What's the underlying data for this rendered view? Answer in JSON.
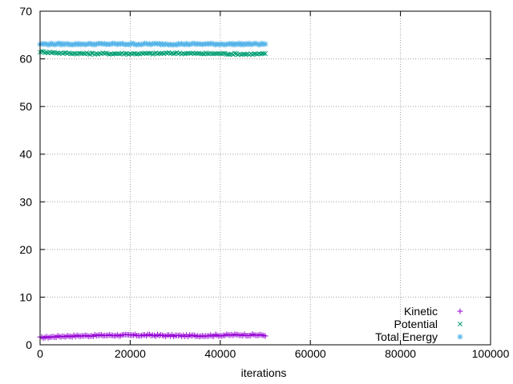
{
  "chart_data": {
    "type": "scatter",
    "title": "",
    "xlabel": "iterations",
    "ylabel": "",
    "xlim": [
      0,
      100000
    ],
    "ylim": [
      0,
      70
    ],
    "x_ticks": [
      0,
      20000,
      40000,
      60000,
      80000,
      100000
    ],
    "y_ticks": [
      0,
      10,
      20,
      30,
      40,
      50,
      60,
      70
    ],
    "grid": true,
    "legend_placement": "bottom-right",
    "series": [
      {
        "name": "Kinetic",
        "marker": "plus",
        "color": "#9400d3",
        "x_range": [
          0,
          50000
        ],
        "points": [
          [
            0,
            1.5
          ],
          [
            5000,
            1.8
          ],
          [
            10000,
            1.9
          ],
          [
            15000,
            2.0
          ],
          [
            20000,
            2.0
          ],
          [
            25000,
            2.0
          ],
          [
            30000,
            1.9
          ],
          [
            35000,
            1.9
          ],
          [
            40000,
            2.0
          ],
          [
            45000,
            2.1
          ],
          [
            50000,
            2.0
          ]
        ]
      },
      {
        "name": "Potential",
        "marker": "cross",
        "color": "#009e73",
        "x_range": [
          0,
          50000
        ],
        "points": [
          [
            0,
            61.5
          ],
          [
            5000,
            61.2
          ],
          [
            10000,
            61.1
          ],
          [
            15000,
            61.1
          ],
          [
            20000,
            61.1
          ],
          [
            25000,
            61.1
          ],
          [
            30000,
            61.2
          ],
          [
            35000,
            61.1
          ],
          [
            40000,
            61.1
          ],
          [
            45000,
            61.0
          ],
          [
            50000,
            61.0
          ]
        ]
      },
      {
        "name": "Total Energy",
        "marker": "star",
        "color": "#56b4e9",
        "x_range": [
          0,
          50000
        ],
        "points": [
          [
            0,
            63.1
          ],
          [
            5000,
            63.1
          ],
          [
            10000,
            63.1
          ],
          [
            15000,
            63.1
          ],
          [
            20000,
            63.1
          ],
          [
            25000,
            63.1
          ],
          [
            30000,
            63.1
          ],
          [
            35000,
            63.1
          ],
          [
            40000,
            63.1
          ],
          [
            45000,
            63.1
          ],
          [
            50000,
            63.1
          ]
        ]
      }
    ]
  }
}
